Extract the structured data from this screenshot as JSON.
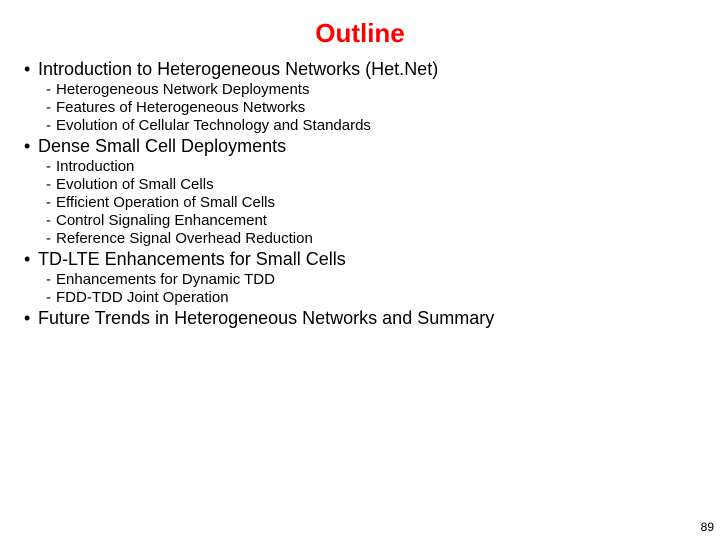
{
  "title": "Outline",
  "title_color": "#ff0000",
  "title_fontsize": 26,
  "text_color": "#000000",
  "lvl1_fontsize": 18,
  "lvl2_fontsize": 15,
  "pagenum_fontsize": 12,
  "page_number": "89",
  "sections": [
    {
      "label": "Introduction to Heterogeneous Networks (Het.Net)",
      "items": [
        "Heterogeneous Network Deployments",
        "Features of Heterogeneous Networks",
        "Evolution of Cellular Technology and Standards"
      ]
    },
    {
      "label": "Dense Small Cell Deployments",
      "items": [
        "Introduction",
        "Evolution of Small Cells",
        "Efficient Operation of Small Cells",
        "Control Signaling Enhancement",
        "Reference Signal Overhead Reduction"
      ]
    },
    {
      "label": "TD-LTE Enhancements for Small Cells",
      "items": [
        "Enhancements for Dynamic TDD",
        "FDD-TDD Joint Operation"
      ]
    },
    {
      "label": "Future Trends in Heterogeneous Networks and Summary",
      "items": []
    }
  ]
}
